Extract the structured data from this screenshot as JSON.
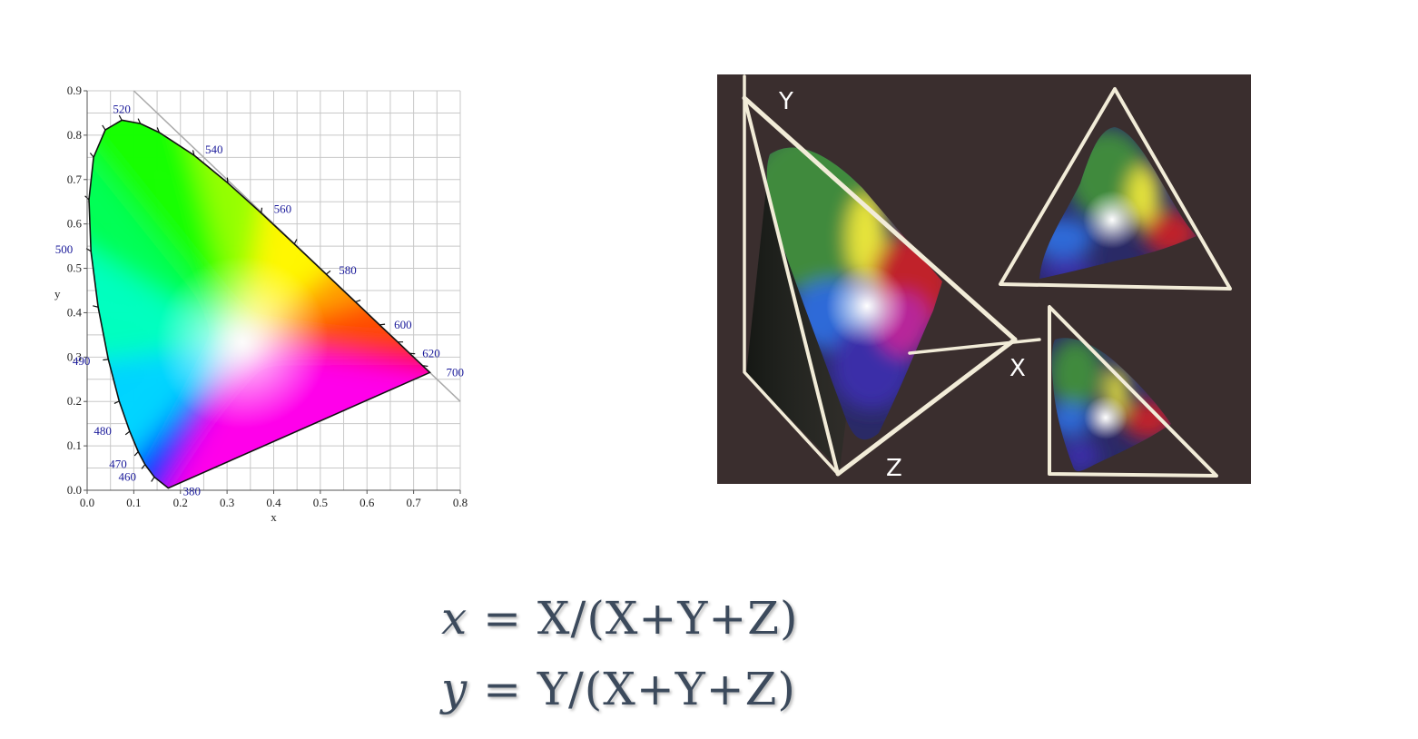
{
  "chart_data": {
    "type": "chromaticity-diagram",
    "title": "",
    "xlabel": "x",
    "ylabel": "y",
    "xlim": [
      0.0,
      0.8
    ],
    "ylim": [
      0.0,
      0.9
    ],
    "x_ticks": [
      "0.0",
      "0.1",
      "0.2",
      "0.3",
      "0.4",
      "0.5",
      "0.6",
      "0.7",
      "0.8"
    ],
    "y_ticks": [
      "0.0",
      "0.1",
      "0.2",
      "0.3",
      "0.4",
      "0.5",
      "0.6",
      "0.7",
      "0.8",
      "0.9"
    ],
    "grid": true,
    "white_point": [
      0.333,
      0.333
    ],
    "spectral_locus": [
      {
        "nm": 380,
        "x": 0.1741,
        "y": 0.005
      },
      {
        "nm": 460,
        "x": 0.144,
        "y": 0.0297
      },
      {
        "nm": 470,
        "x": 0.1241,
        "y": 0.0578
      },
      {
        "nm": 475,
        "x": 0.1096,
        "y": 0.0868
      },
      {
        "nm": 480,
        "x": 0.0913,
        "y": 0.1327
      },
      {
        "nm": 485,
        "x": 0.0687,
        "y": 0.2007
      },
      {
        "nm": 490,
        "x": 0.0454,
        "y": 0.295
      },
      {
        "nm": 495,
        "x": 0.0235,
        "y": 0.4127
      },
      {
        "nm": 500,
        "x": 0.0082,
        "y": 0.5384
      },
      {
        "nm": 505,
        "x": 0.0039,
        "y": 0.6548
      },
      {
        "nm": 510,
        "x": 0.0139,
        "y": 0.7502
      },
      {
        "nm": 515,
        "x": 0.0389,
        "y": 0.812
      },
      {
        "nm": 520,
        "x": 0.0743,
        "y": 0.8338
      },
      {
        "nm": 525,
        "x": 0.1142,
        "y": 0.8262
      },
      {
        "nm": 530,
        "x": 0.1547,
        "y": 0.8059
      },
      {
        "nm": 540,
        "x": 0.2296,
        "y": 0.7543
      },
      {
        "nm": 550,
        "x": 0.3016,
        "y": 0.6923
      },
      {
        "nm": 560,
        "x": 0.3731,
        "y": 0.6245
      },
      {
        "nm": 570,
        "x": 0.4441,
        "y": 0.5547
      },
      {
        "nm": 580,
        "x": 0.5125,
        "y": 0.4866
      },
      {
        "nm": 590,
        "x": 0.5752,
        "y": 0.4242
      },
      {
        "nm": 600,
        "x": 0.627,
        "y": 0.3725
      },
      {
        "nm": 610,
        "x": 0.6658,
        "y": 0.334
      },
      {
        "nm": 620,
        "x": 0.6915,
        "y": 0.3083
      },
      {
        "nm": 640,
        "x": 0.719,
        "y": 0.2809
      },
      {
        "nm": 700,
        "x": 0.7347,
        "y": 0.2653
      }
    ],
    "wavelength_labels": [
      {
        "text": "520",
        "nm": 520
      },
      {
        "text": "540",
        "nm": 540
      },
      {
        "text": "560",
        "nm": 560
      },
      {
        "text": "580",
        "nm": 580
      },
      {
        "text": "600",
        "nm": 600
      },
      {
        "text": "620",
        "nm": 620
      },
      {
        "text": "700",
        "nm": 700
      },
      {
        "text": "500",
        "nm": 500
      },
      {
        "text": "490",
        "nm": 490
      },
      {
        "text": "480",
        "nm": 480
      },
      {
        "text": "470",
        "nm": 470
      },
      {
        "text": "460",
        "nm": 460
      },
      {
        "text": "380",
        "nm": 380
      }
    ]
  },
  "photo": {
    "axis_labels": {
      "y": "Y",
      "x": "X",
      "z": "Z"
    },
    "background_color": "#3a2e2e",
    "line_color": "#f2ecd8"
  },
  "formulas": {
    "x": {
      "lhs": "x",
      "rhs": " = X/(X+Y+Z)"
    },
    "y": {
      "lhs": "y",
      "rhs": " = Y/(X+Y+Z)"
    }
  }
}
